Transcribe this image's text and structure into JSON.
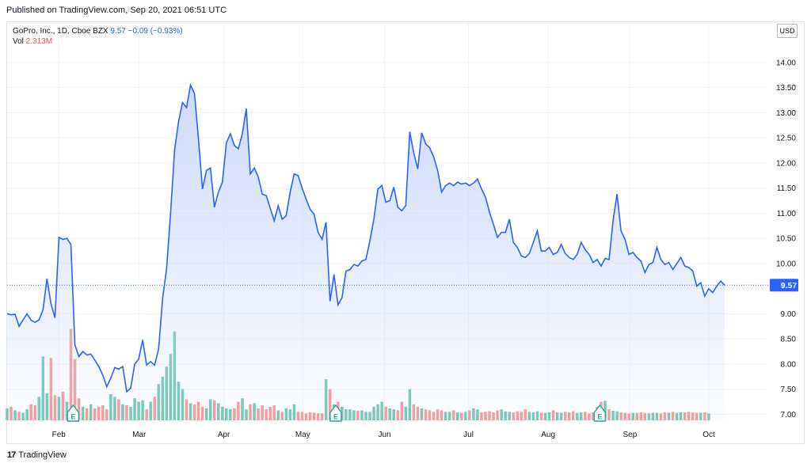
{
  "header": {
    "published": "Published on TradingView.com, Sep 20, 2021 06:51 UTC"
  },
  "legend": {
    "symbol": "GoPro, Inc., 1D, Cboe BZX",
    "last": "9.57",
    "change": "−0.09 (−0.93%)",
    "vol_label": "Vol",
    "vol_value": "2.313M"
  },
  "currency": "USD",
  "footer": {
    "brand": "TradingView"
  },
  "colors": {
    "line": "#2962ff",
    "area_top": "#c9d6fb",
    "vol_up": "#74c7b5",
    "vol_down": "#f29b9a",
    "grid": "#f0f3fa",
    "earnings": "#26a69a"
  },
  "chart_data": {
    "type": "area",
    "title": "GoPro, Inc., 1D, Cboe BZX",
    "ylim": [
      6.85,
      14.8
    ],
    "y_ticks": [
      "7.00",
      "7.50",
      "8.00",
      "8.50",
      "9.00",
      "9.50",
      "10.00",
      "10.50",
      "11.00",
      "11.50",
      "12.00",
      "12.50",
      "13.00",
      "13.50",
      "14.00"
    ],
    "x_ticks": [
      "Feb",
      "Mar",
      "Apr",
      "May",
      "Jun",
      "Jul",
      "Aug",
      "Sep",
      "Oct"
    ],
    "last_price_label": "9.57",
    "last_price": 9.57,
    "earnings_markers": [
      "Feb",
      "May",
      "Aug"
    ],
    "series": [
      {
        "name": "close",
        "values": [
          9.0,
          8.98,
          8.99,
          8.75,
          8.88,
          9.0,
          8.87,
          8.83,
          8.88,
          9.08,
          9.7,
          9.2,
          8.92,
          10.52,
          10.48,
          10.5,
          10.38,
          8.38,
          8.15,
          8.25,
          8.18,
          8.2,
          8.08,
          7.95,
          7.78,
          7.55,
          7.72,
          7.93,
          7.9,
          7.95,
          7.45,
          7.52,
          8.0,
          8.1,
          8.48,
          7.98,
          8.05,
          7.98,
          8.3,
          9.3,
          9.9,
          11.0,
          12.25,
          12.82,
          13.2,
          13.1,
          13.55,
          13.38,
          12.48,
          11.48,
          11.85,
          11.9,
          11.12,
          11.42,
          11.62,
          12.4,
          12.58,
          12.35,
          12.28,
          12.58,
          13.08,
          11.78,
          11.9,
          11.72,
          11.38,
          11.35,
          11.1,
          10.85,
          11.15,
          10.88,
          10.95,
          11.42,
          11.78,
          11.75,
          11.5,
          11.28,
          11.08,
          10.98,
          10.62,
          10.48,
          10.82,
          9.25,
          9.78,
          9.18,
          9.32,
          9.85,
          9.88,
          9.98,
          9.95,
          10.05,
          10.08,
          10.45,
          10.88,
          11.48,
          11.55,
          11.22,
          11.25,
          11.52,
          11.12,
          11.05,
          11.15,
          12.62,
          12.2,
          11.88,
          12.6,
          12.38,
          12.3,
          12.12,
          11.85,
          11.42,
          11.55,
          11.6,
          11.55,
          11.62,
          11.58,
          11.6,
          11.55,
          11.6,
          11.68,
          11.48,
          11.32,
          11.02,
          10.78,
          10.52,
          10.62,
          10.62,
          10.88,
          10.42,
          10.32,
          10.15,
          10.12,
          10.2,
          10.42,
          10.65,
          10.25,
          10.25,
          10.32,
          10.18,
          10.22,
          10.38,
          10.2,
          10.12,
          10.08,
          10.18,
          10.42,
          10.28,
          10.18,
          10.02,
          10.08,
          9.95,
          10.1,
          10.08,
          10.85,
          11.38,
          10.65,
          10.48,
          10.18,
          10.22,
          10.12,
          10.05,
          9.82,
          9.98,
          10.02,
          10.32,
          10.08,
          9.98,
          10.02,
          9.88,
          10.0,
          10.12,
          9.95,
          9.92,
          9.85,
          9.55,
          9.62,
          9.35,
          9.5,
          9.42,
          9.55,
          9.65,
          9.57
        ]
      },
      {
        "name": "volume",
        "values": [
          7.12,
          7.15,
          7.08,
          7.05,
          7.03,
          7.1,
          7.2,
          7.18,
          7.35,
          8.15,
          7.42,
          8.12,
          7.38,
          7.35,
          7.45,
          7.25,
          8.7,
          8.1,
          7.32,
          7.15,
          7.12,
          7.2,
          7.12,
          7.15,
          7.18,
          7.1,
          7.4,
          7.35,
          7.3,
          7.2,
          7.18,
          7.15,
          7.32,
          7.25,
          7.28,
          7.1,
          7.25,
          7.35,
          7.6,
          7.75,
          7.95,
          8.2,
          8.65,
          7.65,
          7.5,
          7.3,
          7.22,
          7.2,
          7.25,
          7.15,
          7.12,
          7.3,
          7.28,
          7.22,
          7.15,
          7.12,
          7.1,
          7.12,
          7.25,
          7.32,
          7.1,
          7.2,
          7.22,
          7.12,
          7.18,
          7.1,
          7.15,
          7.18,
          7.08,
          7.05,
          7.12,
          7.1,
          7.2,
          7.05,
          7.05,
          7.02,
          7.04,
          7.03,
          7.02,
          7.02,
          7.7,
          7.5,
          7.2,
          7.25,
          7.15,
          7.1,
          7.1,
          7.08,
          7.07,
          7.08,
          7.05,
          7.05,
          7.15,
          7.2,
          7.25,
          7.15,
          7.12,
          7.1,
          7.08,
          7.25,
          7.15,
          7.5,
          7.2,
          7.15,
          7.12,
          7.1,
          7.08,
          7.05,
          7.1,
          7.08,
          7.05,
          7.05,
          7.08,
          7.04,
          7.03,
          7.05,
          7.08,
          7.12,
          7.1,
          7.04,
          7.05,
          7.06,
          7.04,
          7.08,
          7.1,
          7.06,
          7.05,
          7.04,
          7.06,
          7.05,
          7.1,
          7.05,
          7.04,
          7.06,
          7.03,
          7.03,
          7.04,
          7.08,
          7.04,
          7.03,
          7.05,
          7.04,
          7.06,
          7.03,
          7.04,
          7.05,
          7.02,
          7.04,
          7.15,
          7.25,
          7.27,
          7.1,
          7.07,
          7.06,
          7.04,
          7.03,
          7.02,
          7.03,
          7.03,
          7.04,
          7.03,
          7.02,
          7.03,
          7.03,
          7.02,
          7.04,
          7.03,
          7.05,
          7.03,
          7.04,
          7.04,
          7.05,
          7.04,
          7.03,
          7.03,
          7.04,
          7.02
        ]
      }
    ]
  }
}
